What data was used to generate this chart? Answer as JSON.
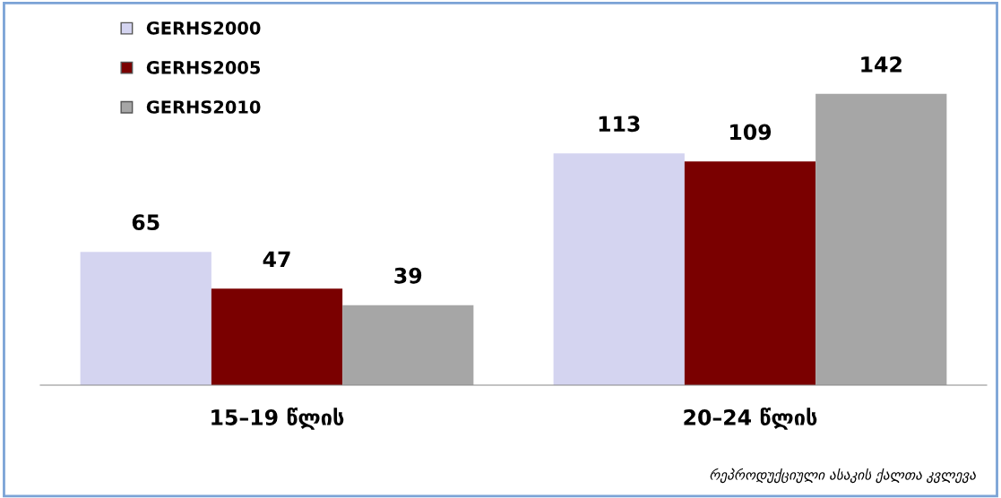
{
  "chart_data": {
    "type": "bar",
    "categories": [
      "15–19 წლის",
      "20–24 წლის"
    ],
    "series": [
      {
        "name": "GERHS2000",
        "color": "#d4d4f0",
        "values": [
          65,
          113
        ]
      },
      {
        "name": "GERHS2005",
        "color": "#7a0000",
        "values": [
          47,
          109
        ]
      },
      {
        "name": "GERHS2010",
        "color": "#a6a6a6",
        "values": [
          39,
          142
        ]
      }
    ],
    "data_labels": true,
    "legend": "top left",
    "grid": false,
    "annotations": [
      "რეპროდუქციული ასაკის ქალთა კვლევა"
    ]
  }
}
